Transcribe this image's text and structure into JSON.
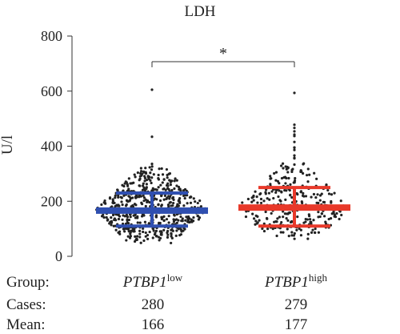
{
  "chart_data": {
    "type": "scatter",
    "title": "LDH",
    "ylabel": "U/l",
    "ylim": [
      0,
      800
    ],
    "yticks": [
      "0",
      "200",
      "400",
      "600",
      "800"
    ],
    "significance": "*",
    "series": [
      {
        "name_main": "PTBP1",
        "name_sup": "low",
        "cases": "280",
        "mean": "166",
        "center": 166,
        "sd_low": 110,
        "sd_high": 230,
        "color": "#2f4fb0",
        "points": [
          605,
          435,
          330,
          320,
          310,
          300,
          295,
          290,
          285,
          280,
          275,
          270,
          265,
          260,
          255,
          250,
          245,
          240,
          235,
          230,
          225,
          220,
          215,
          210,
          205,
          200,
          195,
          190,
          185,
          180,
          175,
          170,
          165,
          160,
          155,
          150,
          145,
          140,
          135,
          130,
          125,
          120,
          115,
          110,
          105,
          100,
          95,
          90,
          85,
          80,
          75,
          70,
          65,
          60,
          55
        ]
      },
      {
        "name_main": "PTBP1",
        "name_sup": "high",
        "cases": "279",
        "mean": "177",
        "center": 177,
        "sd_low": 110,
        "sd_high": 250,
        "color": "#e8392a",
        "points": [
          600,
          485,
          470,
          460,
          445,
          430,
          415,
          400,
          390,
          380,
          370,
          360,
          350,
          340,
          330,
          320,
          310,
          300,
          290,
          280,
          270,
          260,
          250,
          240,
          230,
          220,
          210,
          200,
          190,
          180,
          170,
          160,
          150,
          140,
          130,
          120,
          110,
          100,
          90,
          80,
          70
        ]
      }
    ]
  },
  "table": {
    "group_label": "Group:",
    "cases_label": "Cases:",
    "mean_label": "Mean:"
  }
}
